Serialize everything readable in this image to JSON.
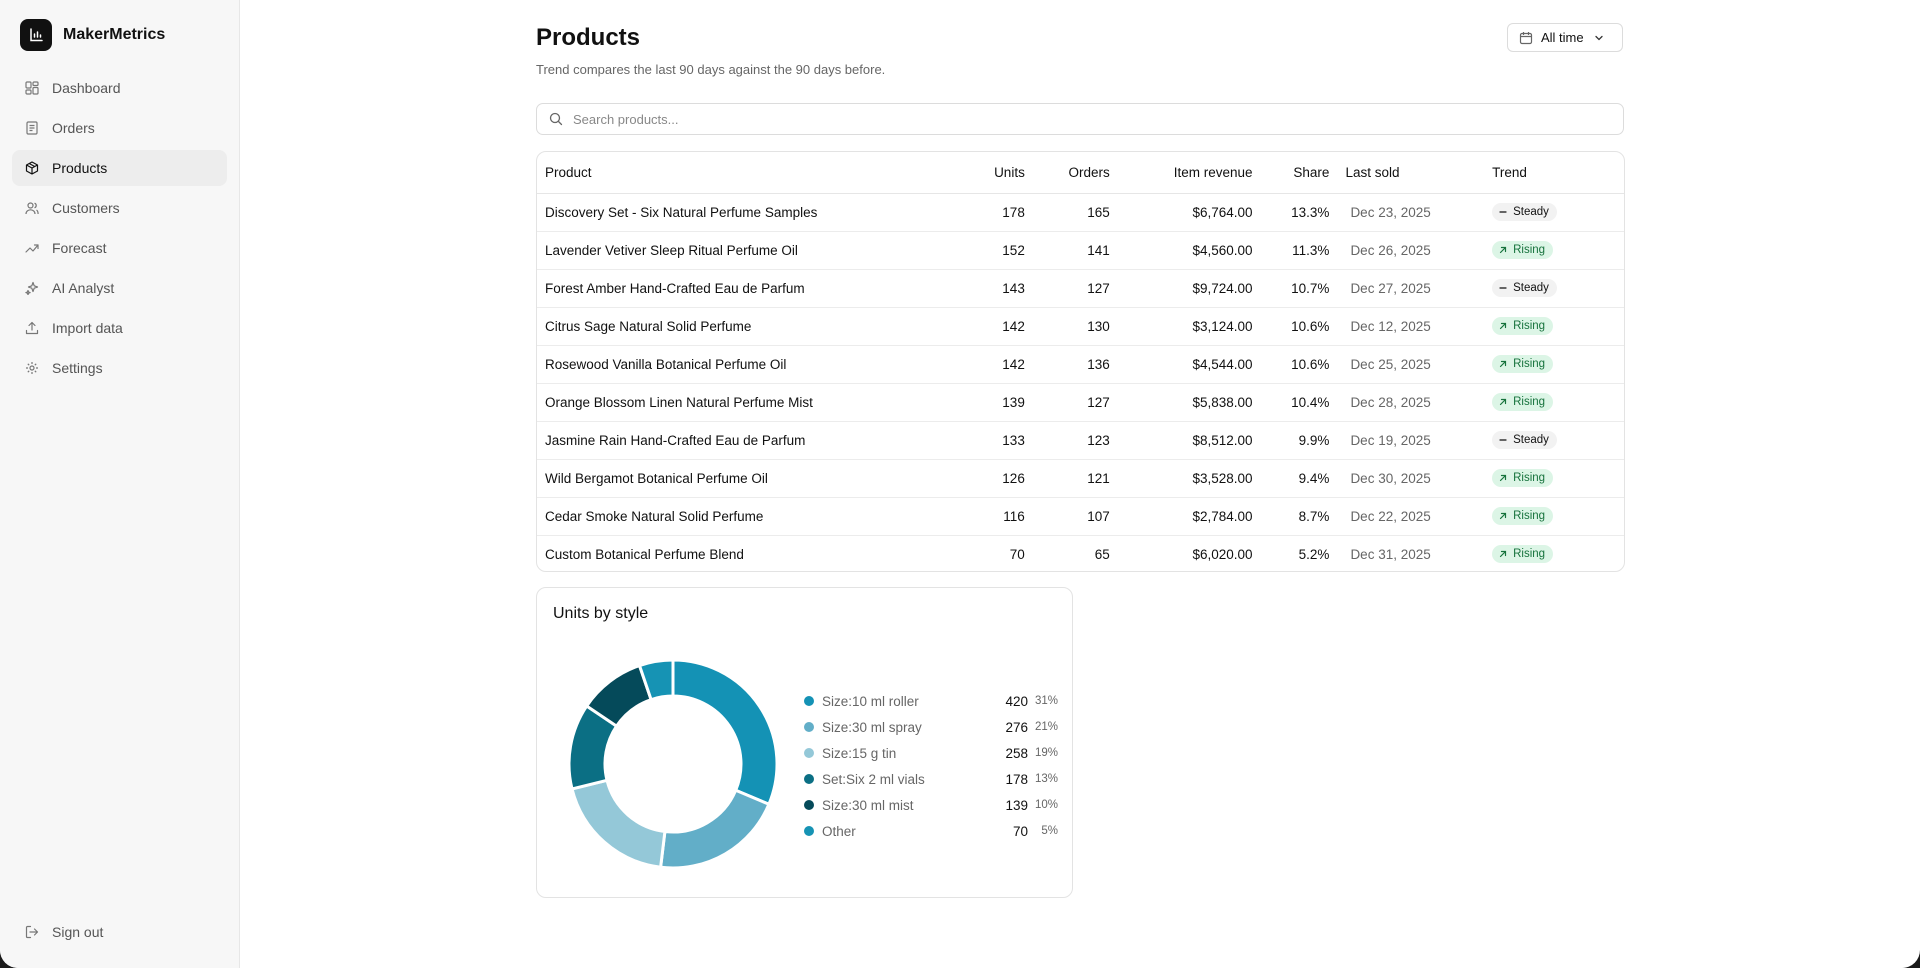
{
  "brand": {
    "name": "MakerMetrics"
  },
  "sidebar": {
    "items": [
      {
        "label": "Dashboard",
        "icon": "dashboard-icon",
        "active": false
      },
      {
        "label": "Orders",
        "icon": "receipt-icon",
        "active": false
      },
      {
        "label": "Products",
        "icon": "package-icon",
        "active": true
      },
      {
        "label": "Customers",
        "icon": "users-icon",
        "active": false
      },
      {
        "label": "Forecast",
        "icon": "trend-up-icon",
        "active": false
      },
      {
        "label": "AI Analyst",
        "icon": "sparkles-icon",
        "active": false
      },
      {
        "label": "Import data",
        "icon": "upload-icon",
        "active": false
      },
      {
        "label": "Settings",
        "icon": "gear-icon",
        "active": false
      }
    ],
    "signout": "Sign out"
  },
  "header": {
    "title": "Products",
    "subtitle": "Trend compares the last 90 days against the 90 days before.",
    "date_filter": "All time"
  },
  "search": {
    "placeholder": "Search products..."
  },
  "table": {
    "columns": [
      "Product",
      "Units",
      "Orders",
      "Item revenue",
      "Share",
      "Last sold",
      "Trend"
    ],
    "rows": [
      {
        "product": "Discovery Set - Six Natural Perfume Samples",
        "units": "178",
        "orders": "165",
        "revenue": "$6,764.00",
        "share": "13.3%",
        "last_sold": "Dec 23, 2025",
        "trend": "Steady"
      },
      {
        "product": "Lavender Vetiver Sleep Ritual Perfume Oil",
        "units": "152",
        "orders": "141",
        "revenue": "$4,560.00",
        "share": "11.3%",
        "last_sold": "Dec 26, 2025",
        "trend": "Rising"
      },
      {
        "product": "Forest Amber Hand-Crafted Eau de Parfum",
        "units": "143",
        "orders": "127",
        "revenue": "$9,724.00",
        "share": "10.7%",
        "last_sold": "Dec 27, 2025",
        "trend": "Steady"
      },
      {
        "product": "Citrus Sage Natural Solid Perfume",
        "units": "142",
        "orders": "130",
        "revenue": "$3,124.00",
        "share": "10.6%",
        "last_sold": "Dec 12, 2025",
        "trend": "Rising"
      },
      {
        "product": "Rosewood Vanilla Botanical Perfume Oil",
        "units": "142",
        "orders": "136",
        "revenue": "$4,544.00",
        "share": "10.6%",
        "last_sold": "Dec 25, 2025",
        "trend": "Rising"
      },
      {
        "product": "Orange Blossom Linen Natural Perfume Mist",
        "units": "139",
        "orders": "127",
        "revenue": "$5,838.00",
        "share": "10.4%",
        "last_sold": "Dec 28, 2025",
        "trend": "Rising"
      },
      {
        "product": "Jasmine Rain Hand-Crafted Eau de Parfum",
        "units": "133",
        "orders": "123",
        "revenue": "$8,512.00",
        "share": "9.9%",
        "last_sold": "Dec 19, 2025",
        "trend": "Steady"
      },
      {
        "product": "Wild Bergamot Botanical Perfume Oil",
        "units": "126",
        "orders": "121",
        "revenue": "$3,528.00",
        "share": "9.4%",
        "last_sold": "Dec 30, 2025",
        "trend": "Rising"
      },
      {
        "product": "Cedar Smoke Natural Solid Perfume",
        "units": "116",
        "orders": "107",
        "revenue": "$2,784.00",
        "share": "8.7%",
        "last_sold": "Dec 22, 2025",
        "trend": "Rising"
      },
      {
        "product": "Custom Botanical Perfume Blend",
        "units": "70",
        "orders": "65",
        "revenue": "$6,020.00",
        "share": "5.2%",
        "last_sold": "Dec 31, 2025",
        "trend": "Rising"
      }
    ]
  },
  "chart_data": {
    "type": "pie",
    "title": "Units by style",
    "categories": [
      "Size:10 ml roller",
      "Size:30 ml spray",
      "Size:15 g tin",
      "Set:Six 2 ml vials",
      "Size:30 ml mist",
      "Other"
    ],
    "values": [
      420,
      276,
      258,
      178,
      139,
      70
    ],
    "percent_labels": [
      "31%",
      "21%",
      "19%",
      "13%",
      "10%",
      "5%"
    ],
    "colors": [
      "#1492b5",
      "#62aec8",
      "#94c8d8",
      "#0b6f84",
      "#054a5a",
      "#1693b4"
    ],
    "donut": true,
    "legend_position": "right"
  }
}
